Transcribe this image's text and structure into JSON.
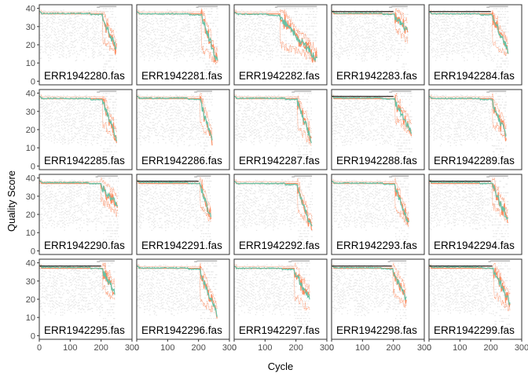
{
  "chart_data": {
    "type": "line",
    "xlabel": "Cycle",
    "ylabel": "Quality Score",
    "xlim": [
      0,
      300
    ],
    "ylim": [
      -2,
      42
    ],
    "x_ticks": [
      0,
      100,
      200,
      300
    ],
    "x_tick_labels": [
      "0",
      "100",
      "200",
      "300"
    ],
    "y_ticks": [
      0,
      10,
      20,
      30,
      40
    ],
    "y_tick_labels": [
      "0",
      "10",
      "20",
      "30",
      "40"
    ],
    "layout": "4 rows x 5 columns facet grid",
    "grid": false,
    "colors": {
      "heatmap": "#e6e6e6",
      "mean": "#66c2a5",
      "median": "#fc8d62",
      "quartile": "#fc8d62",
      "panel_border": "#333333",
      "cumulative": "#bdbdbd"
    },
    "panels": [
      {
        "label": "ERR1942280.fas",
        "len": 251,
        "start": 37.2,
        "dropAt": 205,
        "end": 17,
        "qdrop": 23,
        "dark": false
      },
      {
        "label": "ERR1942281.fas",
        "len": 262,
        "start": 37.0,
        "dropAt": 210,
        "end": 10,
        "qdrop": 18,
        "dark": false
      },
      {
        "label": "ERR1942282.fas",
        "len": 268,
        "start": 36.8,
        "dropAt": 150,
        "end": 12,
        "qdrop": 20,
        "dark": false
      },
      {
        "label": "ERR1942283.fas",
        "len": 246,
        "start": 37.4,
        "dropAt": 205,
        "end": 27,
        "qdrop": 30,
        "dark": true
      },
      {
        "label": "ERR1942284.fas",
        "len": 256,
        "start": 37.0,
        "dropAt": 205,
        "end": 17,
        "qdrop": 22,
        "dark": true
      },
      {
        "label": "ERR1942285.fas",
        "len": 251,
        "start": 37.1,
        "dropAt": 205,
        "end": 15,
        "qdrop": 23,
        "dark": false
      },
      {
        "label": "ERR1942286.fas",
        "len": 245,
        "start": 37.3,
        "dropAt": 205,
        "end": 14,
        "qdrop": 23,
        "dark": false
      },
      {
        "label": "ERR1942287.fas",
        "len": 250,
        "start": 37.2,
        "dropAt": 205,
        "end": 14,
        "qdrop": 21,
        "dark": false
      },
      {
        "label": "ERR1942288.fas",
        "len": 258,
        "start": 37.4,
        "dropAt": 205,
        "end": 18,
        "qdrop": 26,
        "dark": true
      },
      {
        "label": "ERR1942289.fas",
        "len": 251,
        "start": 37.1,
        "dropAt": 205,
        "end": 16,
        "qdrop": 24,
        "dark": false
      },
      {
        "label": "ERR1942290.fas",
        "len": 255,
        "start": 37.5,
        "dropAt": 200,
        "end": 25,
        "qdrop": 28,
        "dark": false
      },
      {
        "label": "ERR1942291.fas",
        "len": 240,
        "start": 37.6,
        "dropAt": 205,
        "end": 18,
        "qdrop": 24,
        "dark": true
      },
      {
        "label": "ERR1942292.fas",
        "len": 252,
        "start": 37.0,
        "dropAt": 205,
        "end": 12,
        "qdrop": 22,
        "dark": false
      },
      {
        "label": "ERR1942293.fas",
        "len": 250,
        "start": 37.2,
        "dropAt": 205,
        "end": 15,
        "qdrop": 23,
        "dark": false
      },
      {
        "label": "ERR1942294.fas",
        "len": 256,
        "start": 37.6,
        "dropAt": 205,
        "end": 17,
        "qdrop": 25,
        "dark": true
      },
      {
        "label": "ERR1942295.fas",
        "len": 245,
        "start": 37.5,
        "dropAt": 205,
        "end": 24,
        "qdrop": 27,
        "dark": true
      },
      {
        "label": "ERR1942296.fas",
        "len": 260,
        "start": 37.2,
        "dropAt": 205,
        "end": 12,
        "qdrop": 20,
        "dark": false
      },
      {
        "label": "ERR1942297.fas",
        "len": 245,
        "start": 37.0,
        "dropAt": 195,
        "end": 20,
        "qdrop": 22,
        "dark": false
      },
      {
        "label": "ERR1942298.fas",
        "len": 242,
        "start": 37.3,
        "dropAt": 200,
        "end": 20,
        "qdrop": 24,
        "dark": true
      },
      {
        "label": "ERR1942299.fas",
        "len": 262,
        "start": 37.6,
        "dropAt": 210,
        "end": 18,
        "qdrop": 23,
        "dark": true
      }
    ]
  }
}
